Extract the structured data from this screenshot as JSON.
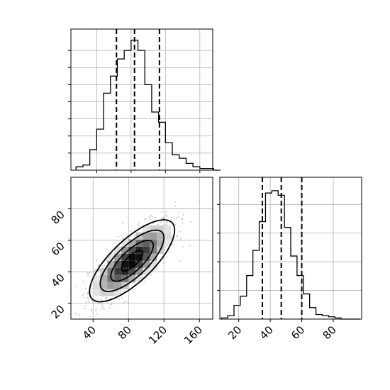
{
  "chart_data": [
    {
      "type": "histogram",
      "panel": "top-left",
      "variable": "x",
      "bin_start": 16,
      "bin_width": 8,
      "counts": [
        2,
        3,
        12,
        24,
        45,
        55,
        65,
        70,
        76,
        70,
        50,
        34,
        28,
        16,
        9,
        7,
        4,
        2,
        1,
        1,
        0
      ],
      "quantiles": [
        63,
        84,
        113
      ],
      "xlim": [
        10,
        175
      ],
      "ymax": 80,
      "grid": true
    },
    {
      "type": "histogram",
      "panel": "bottom-right",
      "variable": "y",
      "bin_start": 9,
      "bin_width": 4,
      "counts": [
        1,
        3,
        12,
        20,
        38,
        60,
        85,
        110,
        112,
        108,
        80,
        55,
        38,
        22,
        10,
        4,
        3,
        2,
        1,
        0,
        0,
        0
      ],
      "quantiles": [
        35,
        47,
        60
      ],
      "xlim": [
        8,
        98
      ],
      "ymax": 120,
      "xticks": [
        20,
        40,
        60,
        80
      ],
      "grid": true
    },
    {
      "type": "heatmap",
      "panel": "bottom-left",
      "description_of_plot": "2D density with contours",
      "x_range": [
        15,
        175
      ],
      "y_range": [
        10,
        100
      ],
      "center": [
        84,
        47
      ],
      "sigma": [
        24,
        13
      ],
      "correlation": 0.75,
      "contour_levels": [
        0.118,
        0.393,
        0.675,
        0.865
      ],
      "xticks": [
        40,
        80,
        120,
        160
      ],
      "yticks": [
        20,
        40,
        60,
        80
      ],
      "grid": true
    }
  ]
}
